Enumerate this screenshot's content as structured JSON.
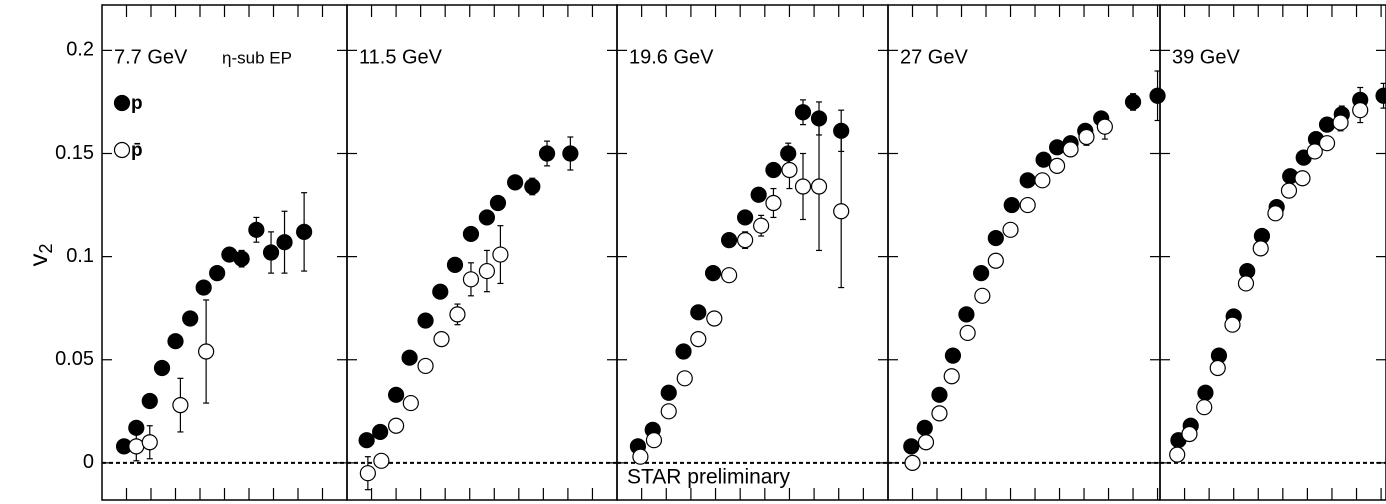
{
  "chart_data": [
    {
      "type": "scatter",
      "title": "7.7 GeV",
      "annotation": "η-sub EP",
      "y_label": "v",
      "y_label_sub": "2",
      "xlim": [
        0,
        2
      ],
      "xticks": [
        0.2,
        0.4,
        0.6,
        0.8,
        1.0,
        1.2,
        1.4,
        1.6,
        1.8
      ],
      "ylim": [
        -0.018,
        0.222
      ],
      "yticks": [
        0,
        0.05,
        0.1,
        0.15,
        0.2
      ],
      "hline": 0,
      "series": [
        {
          "name": "p",
          "marker": "filled",
          "color": "#000000",
          "x": [
            0.18,
            0.28,
            0.39,
            0.49,
            0.6,
            0.72,
            0.83,
            0.94,
            1.04,
            1.14,
            1.26,
            1.38,
            1.49,
            1.65
          ],
          "values": [
            0.008,
            0.017,
            0.03,
            0.046,
            0.059,
            0.07,
            0.085,
            0.092,
            0.101,
            0.099,
            0.113,
            0.102,
            0.107,
            0.112
          ],
          "errors": [
            0.002,
            0.002,
            0.002,
            0.002,
            0.002,
            0.002,
            0.003,
            0.003,
            0.003,
            0.004,
            0.006,
            0.01,
            0.015,
            0.019
          ]
        },
        {
          "name": "p̄",
          "marker": "open",
          "color": "#000000",
          "x": [
            0.28,
            0.39,
            0.64,
            0.85
          ],
          "values": [
            0.008,
            0.01,
            0.028,
            0.054
          ],
          "errors": [
            0.007,
            0.008,
            0.013,
            0.025
          ]
        }
      ]
    },
    {
      "type": "scatter",
      "title": "11.5 GeV",
      "xlim": [
        0,
        2.2
      ],
      "xticks": [
        0.2,
        0.4,
        0.6,
        0.8,
        1.0,
        1.2,
        1.4,
        1.6,
        1.8,
        2.0
      ],
      "ylim": [
        -0.018,
        0.222
      ],
      "yticks": [
        0,
        0.05,
        0.1,
        0.15,
        0.2
      ],
      "hline": 0,
      "series": [
        {
          "marker": "filled",
          "color": "#000000",
          "x": [
            0.16,
            0.27,
            0.4,
            0.51,
            0.64,
            0.76,
            0.88,
            1.01,
            1.14,
            1.23,
            1.37,
            1.51,
            1.63,
            1.82
          ],
          "values": [
            0.011,
            0.015,
            0.033,
            0.051,
            0.069,
            0.083,
            0.096,
            0.111,
            0.119,
            0.126,
            0.136,
            0.134,
            0.15,
            0.15
          ],
          "errors": [
            0.002,
            0.002,
            0.002,
            0.002,
            0.002,
            0.002,
            0.002,
            0.002,
            0.002,
            0.002,
            0.003,
            0.004,
            0.006,
            0.008
          ]
        },
        {
          "marker": "open",
          "color": "#000000",
          "x": [
            0.17,
            0.28,
            0.4,
            0.52,
            0.64,
            0.77,
            0.9,
            1.01,
            1.14,
            1.25
          ],
          "values": [
            -0.005,
            0.001,
            0.018,
            0.029,
            0.047,
            0.06,
            0.072,
            0.089,
            0.093,
            0.101
          ],
          "errors": [
            0.008,
            0.003,
            0.002,
            0.002,
            0.002,
            0.003,
            0.005,
            0.008,
            0.01,
            0.014
          ]
        }
      ]
    },
    {
      "type": "scatter",
      "title": "19.6 GeV",
      "annotation": "STAR preliminary",
      "xlim": [
        0,
        2.2
      ],
      "xticks": [
        0.2,
        0.4,
        0.6,
        0.8,
        1.0,
        1.2,
        1.4,
        1.6,
        1.8,
        2.0
      ],
      "ylim": [
        -0.018,
        0.222
      ],
      "yticks": [
        0,
        0.05,
        0.1,
        0.15,
        0.2
      ],
      "hline": 0,
      "series": [
        {
          "marker": "filled",
          "color": "#000000",
          "x": [
            0.17,
            0.29,
            0.42,
            0.54,
            0.66,
            0.78,
            0.91,
            1.04,
            1.15,
            1.27,
            1.39,
            1.51,
            1.64,
            1.82
          ],
          "values": [
            0.008,
            0.016,
            0.034,
            0.054,
            0.073,
            0.092,
            0.108,
            0.119,
            0.13,
            0.142,
            0.15,
            0.17,
            0.167,
            0.161
          ],
          "errors": [
            0.002,
            0.002,
            0.002,
            0.002,
            0.002,
            0.002,
            0.002,
            0.002,
            0.002,
            0.003,
            0.005,
            0.006,
            0.008,
            0.01
          ]
        },
        {
          "marker": "open",
          "color": "#000000",
          "x": [
            0.19,
            0.3,
            0.42,
            0.55,
            0.66,
            0.79,
            0.91,
            1.04,
            1.17,
            1.27,
            1.4,
            1.51,
            1.64,
            1.82
          ],
          "values": [
            0.003,
            0.011,
            0.025,
            0.041,
            0.06,
            0.07,
            0.091,
            0.108,
            0.115,
            0.126,
            0.142,
            0.134,
            0.134,
            0.122
          ],
          "errors": [
            0.002,
            0.002,
            0.002,
            0.002,
            0.002,
            0.002,
            0.002,
            0.004,
            0.005,
            0.007,
            0.009,
            0.016,
            0.031,
            0.037
          ]
        }
      ]
    },
    {
      "type": "scatter",
      "title": "27 GeV",
      "xlim": [
        0,
        2.22
      ],
      "xticks": [
        0.2,
        0.4,
        0.6,
        0.8,
        1.0,
        1.2,
        1.4,
        1.6,
        1.8,
        2.0,
        2.2
      ],
      "ylim": [
        -0.018,
        0.222
      ],
      "yticks": [
        0,
        0.05,
        0.1,
        0.15,
        0.2
      ],
      "hline": 0,
      "series": [
        {
          "marker": "filled",
          "color": "#000000",
          "x": [
            0.19,
            0.3,
            0.42,
            0.53,
            0.64,
            0.76,
            0.88,
            1.01,
            1.14,
            1.27,
            1.38,
            1.49,
            1.61,
            1.74,
            2.0,
            2.2
          ],
          "values": [
            0.008,
            0.017,
            0.033,
            0.052,
            0.072,
            0.092,
            0.109,
            0.125,
            0.137,
            0.147,
            0.153,
            0.155,
            0.161,
            0.167,
            0.175,
            0.178
          ],
          "errors": [
            0.002,
            0.002,
            0.002,
            0.002,
            0.002,
            0.002,
            0.002,
            0.002,
            0.002,
            0.002,
            0.002,
            0.003,
            0.003,
            0.003,
            0.004,
            0.012
          ]
        },
        {
          "marker": "open",
          "color": "#000000",
          "x": [
            0.2,
            0.31,
            0.42,
            0.52,
            0.65,
            0.77,
            0.88,
            1.0,
            1.14,
            1.26,
            1.38,
            1.49,
            1.62,
            1.77
          ],
          "values": [
            0.0,
            0.01,
            0.024,
            0.042,
            0.063,
            0.081,
            0.098,
            0.113,
            0.125,
            0.137,
            0.144,
            0.152,
            0.158,
            0.163
          ],
          "errors": [
            0.002,
            0.002,
            0.002,
            0.002,
            0.002,
            0.002,
            0.002,
            0.002,
            0.002,
            0.002,
            0.003,
            0.003,
            0.004,
            0.006
          ]
        }
      ]
    },
    {
      "type": "scatter",
      "title": "39 GeV",
      "xlim": [
        0,
        1.84
      ],
      "xticks": [
        0.2,
        0.4,
        0.6,
        0.8,
        1.0,
        1.2,
        1.4,
        1.6,
        1.8
      ],
      "ylim": [
        -0.018,
        0.222
      ],
      "yticks": [
        0,
        0.05,
        0.1,
        0.15,
        0.2
      ],
      "hline": 0,
      "series": [
        {
          "marker": "filled",
          "color": "#000000",
          "x": [
            0.15,
            0.25,
            0.37,
            0.48,
            0.6,
            0.71,
            0.83,
            0.95,
            1.06,
            1.17,
            1.27,
            1.36,
            1.48,
            1.63,
            1.82
          ],
          "values": [
            0.011,
            0.018,
            0.034,
            0.052,
            0.071,
            0.093,
            0.11,
            0.124,
            0.139,
            0.148,
            0.157,
            0.164,
            0.169,
            0.176,
            0.178
          ],
          "errors": [
            0.002,
            0.002,
            0.002,
            0.002,
            0.002,
            0.002,
            0.002,
            0.002,
            0.002,
            0.002,
            0.002,
            0.003,
            0.004,
            0.006,
            0.006
          ]
        },
        {
          "marker": "open",
          "color": "#000000",
          "x": [
            0.14,
            0.24,
            0.36,
            0.47,
            0.59,
            0.7,
            0.82,
            0.94,
            1.05,
            1.16,
            1.26,
            1.36,
            1.47,
            1.63
          ],
          "values": [
            0.004,
            0.014,
            0.027,
            0.046,
            0.067,
            0.087,
            0.104,
            0.121,
            0.132,
            0.138,
            0.151,
            0.155,
            0.165,
            0.171
          ],
          "errors": [
            0.002,
            0.002,
            0.002,
            0.002,
            0.002,
            0.002,
            0.002,
            0.002,
            0.002,
            0.002,
            0.002,
            0.003,
            0.004,
            0.006
          ]
        }
      ]
    }
  ]
}
